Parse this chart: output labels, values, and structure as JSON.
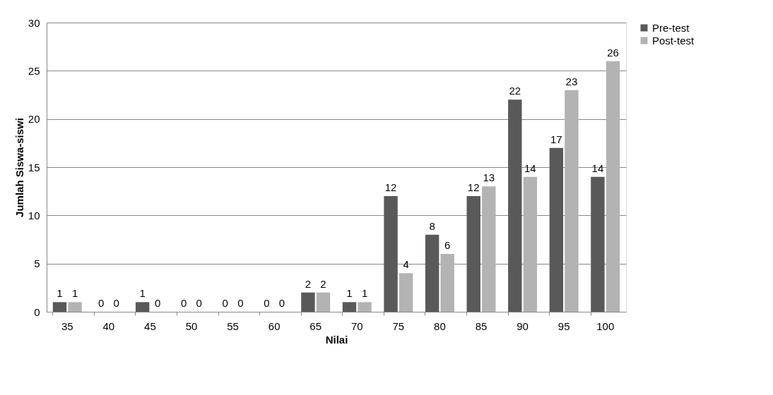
{
  "chart_data": {
    "type": "bar",
    "xlabel": "Nilai",
    "ylabel": "Jumlah Siswa-siswi",
    "categories": [
      "35",
      "40",
      "45",
      "50",
      "55",
      "60",
      "65",
      "70",
      "75",
      "80",
      "85",
      "90",
      "95",
      "100"
    ],
    "series": [
      {
        "name": "Pre-test",
        "color": "#595959",
        "values": [
          1,
          0,
          1,
          0,
          0,
          0,
          2,
          1,
          12,
          8,
          12,
          22,
          17,
          14
        ]
      },
      {
        "name": "Post-test",
        "color": "#b3b3b3",
        "values": [
          1,
          0,
          0,
          0,
          0,
          0,
          2,
          1,
          4,
          6,
          13,
          14,
          23,
          26
        ]
      }
    ],
    "ylim": [
      0,
      30
    ],
    "yticks": [
      0,
      5,
      10,
      15,
      20,
      25,
      30
    ],
    "grid": "y",
    "legend": "right",
    "data_labels": true
  }
}
